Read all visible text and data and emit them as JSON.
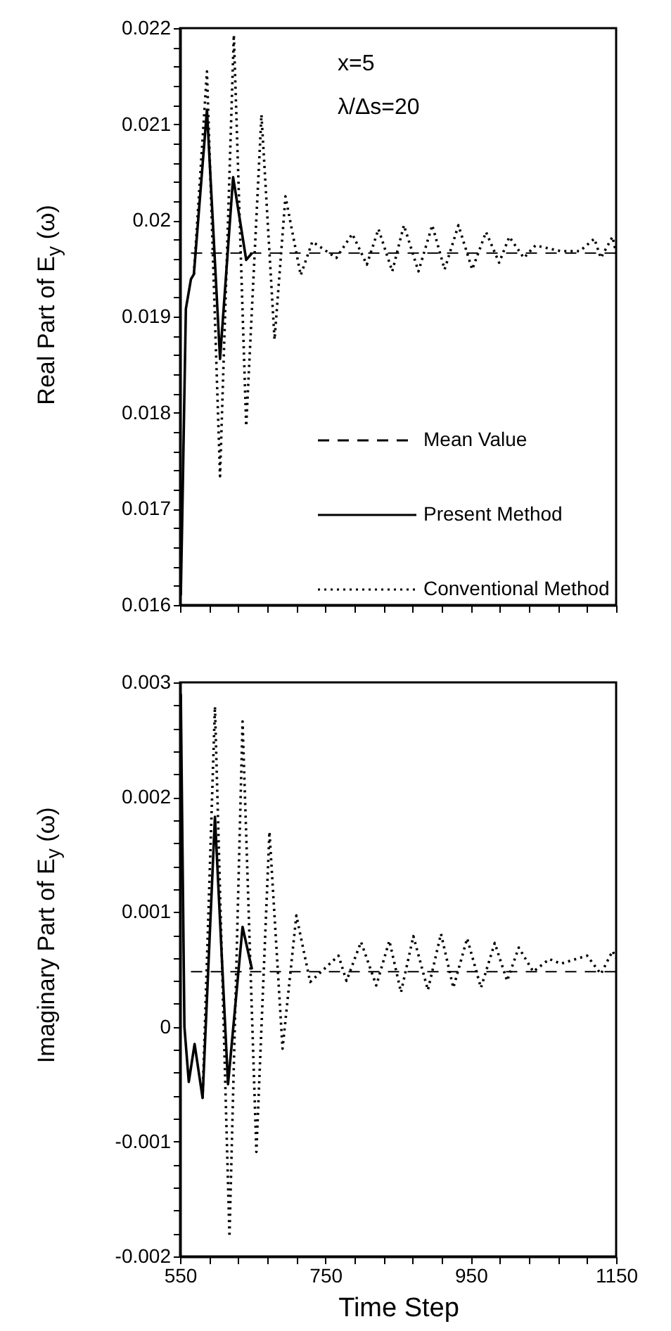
{
  "chart_data": [
    {
      "type": "line",
      "ylabel": "Real Part of E$_{y}$ (ω)",
      "annotations": [
        "x=5",
        "λ/Δs=20"
      ],
      "legend": "bottom right",
      "tick_labels": "y",
      "xlim": [
        550,
        1150
      ],
      "xticks": [
        550,
        {
          "value": 590,
          "label": null
        },
        {
          "value": 630,
          "label": null
        },
        {
          "value": 670,
          "label": null
        },
        {
          "value": 710,
          "label": null
        },
        750,
        {
          "value": 790,
          "label": null
        },
        {
          "value": 830,
          "label": null
        },
        {
          "value": 870,
          "label": null
        },
        {
          "value": 910,
          "label": null
        },
        950,
        {
          "value": 990,
          "label": null
        },
        {
          "value": 1030,
          "label": null
        },
        {
          "value": 1070,
          "label": null
        },
        {
          "value": 1110,
          "label": null
        },
        1150
      ],
      "ylim": [
        0.016,
        0.022
      ],
      "yticks": [
        0.016,
        {
          "value": 0.0162,
          "label": null
        },
        {
          "value": 0.0164,
          "label": null
        },
        {
          "value": 0.0166,
          "label": null
        },
        {
          "value": 0.0168,
          "label": null
        },
        0.017,
        {
          "value": 0.0172,
          "label": null
        },
        {
          "value": 0.0174,
          "label": null
        },
        {
          "value": 0.0176,
          "label": null
        },
        {
          "value": 0.0178,
          "label": null
        },
        0.018,
        {
          "value": 0.0182,
          "label": null
        },
        {
          "value": 0.0184,
          "label": null
        },
        {
          "value": 0.0186,
          "label": null
        },
        {
          "value": 0.0188,
          "label": null
        },
        0.019,
        {
          "value": 0.0192,
          "label": null
        },
        {
          "value": 0.0194,
          "label": null
        },
        {
          "value": 0.0196,
          "label": null
        },
        {
          "value": 0.0198,
          "label": null
        },
        0.02,
        {
          "value": 0.0202,
          "label": null
        },
        {
          "value": 0.0204,
          "label": null
        },
        {
          "value": 0.0206,
          "label": null
        },
        {
          "value": 0.0208,
          "label": null
        },
        0.021,
        {
          "value": 0.0212,
          "label": null
        },
        {
          "value": 0.0214,
          "label": null
        },
        {
          "value": 0.0216,
          "label": null
        },
        {
          "value": 0.0218,
          "label": null
        },
        0.022
      ],
      "series": [
        {
          "name": "Mean Value",
          "color": "#000000",
          "line_style": "dashed",
          "x": [
            565,
            1150
          ],
          "values": [
            0.01966,
            0.01966
          ]
        },
        {
          "name": "Present Method",
          "color": "#000000",
          "line_style": "solid",
          "x": [
            551,
            553,
            558,
            565,
            569,
            587,
            605,
            623,
            641,
            649
          ],
          "values": [
            0.0161,
            0.0169,
            0.01908,
            0.01939,
            0.01944,
            0.02115,
            0.01856,
            0.02045,
            0.01959,
            0.01966
          ]
        },
        {
          "name": "Conventional Method",
          "color": "#000000",
          "line_style": "dotted",
          "x": [
            569,
            587,
            605,
            624,
            641,
            662,
            680,
            695,
            716,
            732,
            765,
            787,
            807,
            823,
            842,
            858,
            878,
            897,
            914,
            933,
            952,
            971,
            989,
            1003,
            1023,
            1039,
            1074,
            1100,
            1120,
            1129,
            1145,
            1150
          ],
          "values": [
            0.01944,
            0.02155,
            0.01734,
            0.02193,
            0.01786,
            0.0211,
            0.01876,
            0.02025,
            0.01943,
            0.01978,
            0.01961,
            0.01986,
            0.01954,
            0.01991,
            0.01947,
            0.01995,
            0.01947,
            0.01995,
            0.01949,
            0.01995,
            0.01949,
            0.01988,
            0.01956,
            0.01983,
            0.01961,
            0.01974,
            0.01968,
            0.01968,
            0.01981,
            0.01961,
            0.01983,
            0.01966
          ]
        }
      ]
    },
    {
      "type": "line",
      "xlabel": "Time Step",
      "ylabel": "Imaginary Part of E$_{y}$ (ω)",
      "xlim": [
        550,
        1150
      ],
      "xticks": [
        550,
        {
          "value": 590,
          "label": null
        },
        {
          "value": 630,
          "label": null
        },
        {
          "value": 670,
          "label": null
        },
        {
          "value": 710,
          "label": null
        },
        750,
        {
          "value": 790,
          "label": null
        },
        {
          "value": 830,
          "label": null
        },
        {
          "value": 870,
          "label": null
        },
        {
          "value": 910,
          "label": null
        },
        950,
        {
          "value": 990,
          "label": null
        },
        {
          "value": 1030,
          "label": null
        },
        {
          "value": 1070,
          "label": null
        },
        {
          "value": 1110,
          "label": null
        },
        1150
      ],
      "ylim": [
        -0.002,
        0.003
      ],
      "yticks": [
        -0.002,
        {
          "value": -0.0018,
          "label": null
        },
        {
          "value": -0.0016,
          "label": null
        },
        {
          "value": -0.0014,
          "label": null
        },
        {
          "value": -0.0012,
          "label": null
        },
        -0.001,
        {
          "value": -0.0008,
          "label": null
        },
        {
          "value": -0.0006,
          "label": null
        },
        {
          "value": -0.0004,
          "label": null
        },
        {
          "value": -0.0002,
          "label": null
        },
        0,
        {
          "value": 0.0002,
          "label": null
        },
        {
          "value": 0.0004,
          "label": null
        },
        {
          "value": 0.0006,
          "label": null
        },
        {
          "value": 0.0008,
          "label": null
        },
        0.001,
        {
          "value": 0.0012,
          "label": null
        },
        {
          "value": 0.0014,
          "label": null
        },
        {
          "value": 0.0016,
          "label": null
        },
        {
          "value": 0.0018,
          "label": null
        },
        0.002,
        {
          "value": 0.0022,
          "label": null
        },
        {
          "value": 0.0024,
          "label": null
        },
        {
          "value": 0.0026,
          "label": null
        },
        {
          "value": 0.0028,
          "label": null
        },
        0.003
      ],
      "series": [
        {
          "color": "#000000",
          "line_style": "dashed",
          "x": [
            565,
            1150
          ],
          "values": [
            0.00048,
            0.00048
          ]
        },
        {
          "color": "#000000",
          "line_style": "solid",
          "x": [
            551,
            556,
            562,
            570,
            581,
            598,
            616,
            636,
            649
          ],
          "values": [
            0.0029,
            0.0,
            -0.00048,
            -0.00015,
            -0.00062,
            0.00183,
            -0.0005,
            0.00087,
            0.0005
          ]
        },
        {
          "color": "#000000",
          "line_style": "dotted",
          "x": [
            581,
            598,
            618,
            636,
            655,
            673,
            691,
            710,
            729,
            768,
            779,
            799,
            820,
            838,
            854,
            871,
            891,
            909,
            926,
            945,
            964,
            983,
            1000,
            1016,
            1036,
            1058,
            1074,
            1110,
            1129,
            1145,
            1150
          ],
          "values": [
            -0.00062,
            0.00279,
            -0.00183,
            0.00266,
            -0.00109,
            0.0017,
            -0.00019,
            0.00097,
            0.00039,
            0.00062,
            0.0004,
            0.00074,
            0.00036,
            0.00075,
            0.0003,
            0.00079,
            0.00032,
            0.00081,
            0.00034,
            0.00077,
            0.00034,
            0.00073,
            0.0004,
            0.00069,
            0.00048,
            0.00059,
            0.00055,
            0.00062,
            0.00046,
            0.00066,
            0.0006
          ]
        }
      ]
    }
  ]
}
